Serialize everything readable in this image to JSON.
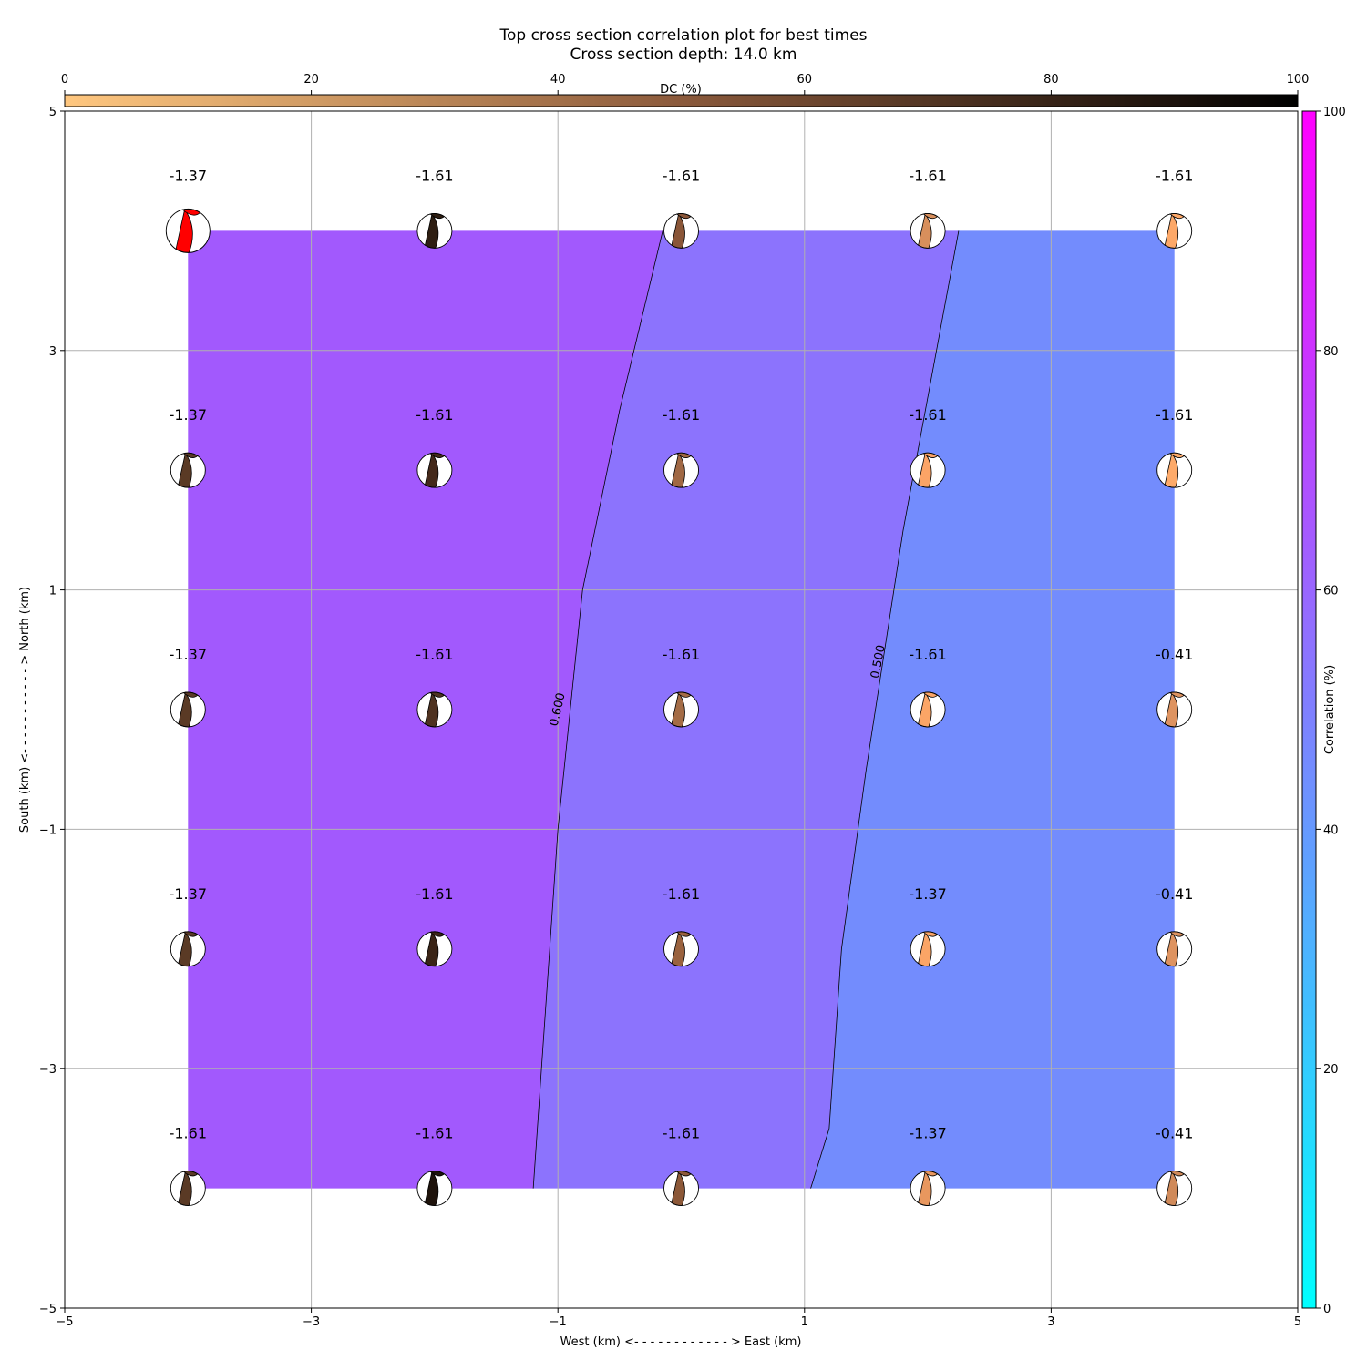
{
  "chart_data": {
    "type": "contour",
    "title": "Top cross section correlation plot for best times",
    "subtitle": "Cross section depth: 14.0 km",
    "xlabel": "West (km) <- - - - - - - - - - - - > East (km)",
    "ylabel": "South (km) <- - - - - - - - - - - > North (km)",
    "xlim": [
      -5,
      5
    ],
    "ylim": [
      -5,
      5
    ],
    "xticks": [
      -5,
      -3,
      -1,
      1,
      3,
      5
    ],
    "yticks": [
      -5,
      -3,
      -1,
      1,
      3,
      5
    ],
    "xtick_labels": [
      "−5",
      "−3",
      "−1",
      "1",
      "3",
      "5"
    ],
    "ytick_labels": [
      "−5",
      "−3",
      "−1",
      "1",
      "3",
      "5"
    ],
    "grid": true,
    "correlation_colorbar": {
      "label": "Correlation (%)",
      "range": [
        0,
        100
      ],
      "ticks": [
        0,
        20,
        40,
        60,
        80,
        100
      ],
      "colormap": [
        "#00ffff",
        "#ff00ff"
      ]
    },
    "dc_colorbar": {
      "label": "DC (%)",
      "range": [
        0,
        100
      ],
      "ticks": [
        0,
        20,
        40,
        60,
        80,
        100
      ],
      "colormap": [
        "#ffc77f",
        "#000000"
      ]
    },
    "contour_regions": [
      {
        "level": 0.65,
        "color": "#a259fd"
      },
      {
        "level": 0.55,
        "color": "#8c73fd"
      },
      {
        "level": 0.45,
        "color": "#738cfd"
      }
    ],
    "contour_lines": [
      {
        "label": "0.600",
        "level": 0.6,
        "points": [
          [
            -1.2,
            -4
          ],
          [
            -1.0,
            -1
          ],
          [
            -0.8,
            1
          ],
          [
            -0.5,
            2.5
          ],
          [
            -0.15,
            4
          ]
        ],
        "label_at": [
          -1.0,
          0.0
        ],
        "label_angle": -77
      },
      {
        "label": "0.500",
        "level": 0.5,
        "points": [
          [
            1.05,
            -4
          ],
          [
            1.2,
            -3.5
          ],
          [
            1.3,
            -2
          ],
          [
            1.5,
            -0.5
          ],
          [
            1.8,
            1.5
          ],
          [
            2.25,
            4
          ]
        ],
        "label_at": [
          1.6,
          0.4
        ],
        "label_angle": -79
      }
    ],
    "region_extent": {
      "x": [
        -4,
        4
      ],
      "y": [
        -4,
        4
      ]
    },
    "grid_points_x": [
      -4,
      -2,
      0,
      2,
      4
    ],
    "grid_points_y": [
      4,
      2,
      0,
      -2,
      -4
    ],
    "point_labels": [
      [
        "-1.37",
        "-1.61",
        "-1.61",
        "-1.61",
        "-1.61"
      ],
      [
        "-1.37",
        "-1.61",
        "-1.61",
        "-1.61",
        "-1.61"
      ],
      [
        "-1.37",
        "-1.61",
        "-1.61",
        "-1.61",
        "-0.41"
      ],
      [
        "-1.37",
        "-1.61",
        "-1.61",
        "-1.37",
        "-0.41"
      ],
      [
        "-1.61",
        "-1.61",
        "-1.61",
        "-1.37",
        "-0.41"
      ]
    ],
    "beachball_colors": [
      [
        "#ff0000",
        "#2e1e12",
        "#8a5638",
        "#d88f5c",
        "#fda868"
      ],
      [
        "#5a3a25",
        "#44291a",
        "#a06844",
        "#fca466",
        "#fdaa6a"
      ],
      [
        "#5a3a25",
        "#4e3220",
        "#a46c46",
        "#fba566",
        "#de9360"
      ],
      [
        "#5a3a25",
        "#3a2416",
        "#9a623e",
        "#fba566",
        "#de9360"
      ],
      [
        "#5a3a25",
        "#1e130b",
        "#8c5838",
        "#e8975e",
        "#d08a5a"
      ]
    ],
    "beachball_highlight": [
      0,
      0
    ]
  }
}
